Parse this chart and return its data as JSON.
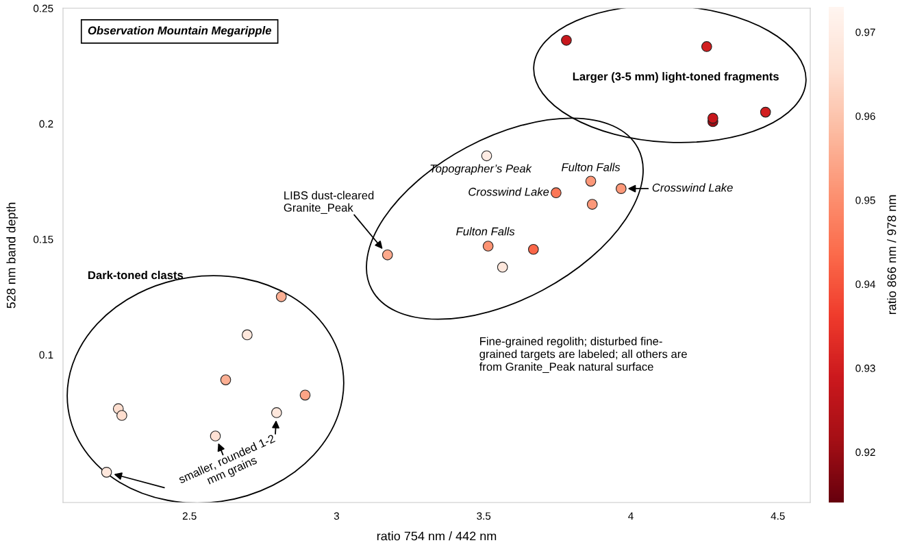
{
  "chart_data": {
    "type": "scatter",
    "title": "Observation Mountain Megaripple",
    "xlabel": "ratio 754 nm / 442 nm",
    "ylabel": "528 nm band depth",
    "clabel": "ratio 866 nm / 978 nm",
    "x": [
      3.781,
      4.258,
      4.279,
      4.279,
      4.458,
      3.51,
      3.864,
      3.967,
      3.869,
      3.746,
      3.173,
      3.515,
      3.669,
      3.564,
      2.812,
      2.696,
      2.623,
      2.893,
      2.258,
      2.27,
      2.796,
      2.588,
      2.218
    ],
    "values": [
      0.2361,
      0.2334,
      0.2009,
      0.2024,
      0.205,
      0.1861,
      0.1751,
      0.1719,
      0.1651,
      0.1701,
      0.1432,
      0.147,
      0.1456,
      0.1379,
      0.1251,
      0.1086,
      0.0891,
      0.0825,
      0.0766,
      0.0737,
      0.0749,
      0.0648,
      0.0491
    ],
    "cvalues": [
      0.928,
      0.93,
      0.92,
      0.928,
      0.93,
      0.97,
      0.952,
      0.952,
      0.952,
      0.946,
      0.955,
      0.951,
      0.943,
      0.968,
      0.956,
      0.968,
      0.956,
      0.954,
      0.965,
      0.965,
      0.968,
      0.966,
      0.968
    ],
    "marker": "circle",
    "xlim": [
      2.07,
      4.61
    ],
    "ylim": [
      0.036,
      0.25
    ],
    "xticks": [
      2.5,
      3,
      3.5,
      4,
      4.5
    ],
    "yticks": [
      0.1,
      0.15,
      0.2,
      0.25
    ],
    "clim": [
      0.914,
      0.973
    ],
    "cticks": [
      0.92,
      0.93,
      0.94,
      0.95,
      0.96,
      0.97
    ],
    "grid": false,
    "legend": false,
    "annotations": [
      {
        "text": "Topographer’s Peak",
        "x": 3.51,
        "y": 0.1861
      },
      {
        "text": "Fulton Falls",
        "x": 3.864,
        "y": 0.1751
      },
      {
        "text": "Crosswind Lake",
        "x": 3.746,
        "y": 0.1701
      },
      {
        "text": "Crosswind Lake",
        "x": 3.967,
        "y": 0.1719
      },
      {
        "text": "Fulton Falls",
        "x": 3.515,
        "y": 0.147
      },
      "LIBS dust-cleared\nGranite_Peak",
      "smaller, rounded 1-2\nmm grains",
      "Dark-toned clasts",
      "Larger (3-5 mm) light-toned fragments",
      "Fine-grained regolith; disturbed fine-\ngrained targets are labeled; all others are\nfrom Granite_Peak natural surface"
    ]
  }
}
